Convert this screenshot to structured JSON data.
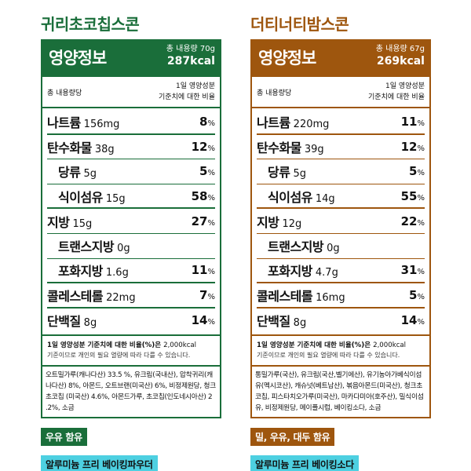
{
  "colors": {
    "green": "#1a6e3a",
    "brown": "#9e560e",
    "cyan": "#4dd0e1"
  },
  "products": [
    {
      "title": "귀리초코칩스콘",
      "panel_title": "영양정보",
      "total_content": "총 내용량 70g",
      "kcal": "287kcal",
      "sub_left": "총 내용량당",
      "sub_right_1": "1일 영양성분",
      "sub_right_2": "기준치에 대한 비율",
      "rows": [
        {
          "name": "나트륨",
          "amount": "156mg",
          "pct": "8"
        },
        {
          "name": "탄수화물",
          "amount": "38g",
          "pct": "12"
        },
        {
          "name": "당류",
          "amount": "5g",
          "pct": "5"
        },
        {
          "name": "식이섬유",
          "amount": "15g",
          "pct": "58"
        },
        {
          "name": "지방",
          "amount": "15g",
          "pct": "27"
        },
        {
          "name": "트랜스지방",
          "amount": "0g",
          "pct": ""
        },
        {
          "name": "포화지방",
          "amount": "1.6g",
          "pct": "11"
        },
        {
          "name": "콜레스테롤",
          "amount": "22mg",
          "pct": "7"
        },
        {
          "name": "단백질",
          "amount": "8g",
          "pct": "14"
        }
      ],
      "pct_unit": "%",
      "foot_bold": "1일 영양성분 기준치에 대한 비율(%)은",
      "foot_kcal": "2,000kcal",
      "foot_line2": "기준이므로 개인의 필요 열량에 따라 다를 수 있습니다.",
      "ingredients": "오트밀가루(캐나다산) 33.5 %, 유크림(국내산), 압착귀리(캐나다산) 8%, 아몬드, 오트브랜(미국산) 6%, 비정제원당, 청크초코칩 (미국산) 4.6%, 아몬드가루, 초코칩(인도네시아산) 2 .2%, 소금",
      "allergen": "우유 함유",
      "extra": "알루미늄 프리 베이킹파우더"
    },
    {
      "title": "더티너티밤스콘",
      "panel_title": "영양정보",
      "total_content": "총 내용량 67g",
      "kcal": "269kcal",
      "sub_left": "총 내용량당",
      "sub_right_1": "1일 영양성분",
      "sub_right_2": "기준치에 대한 비율",
      "rows": [
        {
          "name": "나트륨",
          "amount": "220mg",
          "pct": "11"
        },
        {
          "name": "탄수화물",
          "amount": "39g",
          "pct": "12"
        },
        {
          "name": "당류",
          "amount": "5g",
          "pct": "5"
        },
        {
          "name": "식이섬유",
          "amount": "14g",
          "pct": "55"
        },
        {
          "name": "지방",
          "amount": "12g",
          "pct": "22"
        },
        {
          "name": "트랜스지방",
          "amount": "0g",
          "pct": ""
        },
        {
          "name": "포화지방",
          "amount": "4.7g",
          "pct": "31"
        },
        {
          "name": "콜레스테롤",
          "amount": "16mg",
          "pct": "5"
        },
        {
          "name": "단백질",
          "amount": "8g",
          "pct": "14"
        }
      ],
      "pct_unit": "%",
      "foot_bold": "1일 영양성분 기준치에 대한 비율(%)은",
      "foot_kcal": "2,000kcal",
      "foot_line2": "기준이므로 개인의 필요 열량에 따라 다를 수 있습니다.",
      "ingredients": "통밀가루(국산), 유크림(국산,벨기에산), 유기농아가베식이섬유(멕시코산), 캐슈넛(베트남산), 볶음아몬드(미국산), 청크초코칩, 피스타치오가루(미국산), 마카다미아(호주산), 밀식이섬유, 비정제원당, 메이플시럽, 베이킹소다, 소금",
      "allergen": "밀, 우유, 대두 함유",
      "extra": "알루미늄 프리 베이킹소다"
    }
  ]
}
